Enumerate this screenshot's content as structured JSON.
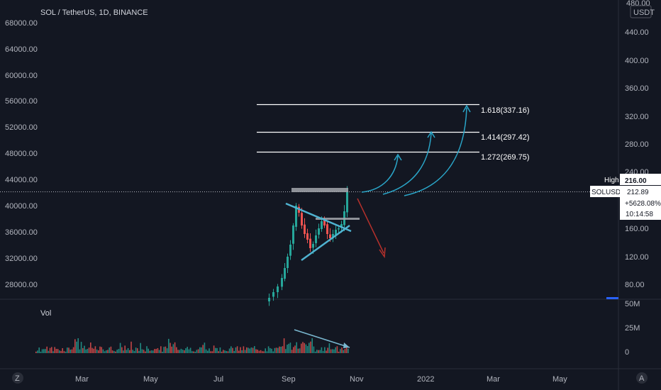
{
  "header": {
    "title": "SOL / TetherUS, 1D, BINANCE"
  },
  "axis": {
    "currency": "USDT",
    "zoom_left": "Z",
    "zoom_right": "A"
  },
  "left_ticks": [
    "68000.00",
    "64000.00",
    "60000.00",
    "56000.00",
    "52000.00",
    "48000.00",
    "44000.00",
    "40000.00",
    "36000.00",
    "32000.00",
    "28000.00"
  ],
  "right_ticks": [
    "480.00",
    "440.00",
    "400.00",
    "360.00",
    "320.00",
    "280.00",
    "240.00",
    "160.00",
    "120.00",
    "80.00"
  ],
  "volume": {
    "label": "Vol",
    "ticks": [
      "50M",
      "25M",
      "0"
    ]
  },
  "x_ticks": [
    "Mar",
    "May",
    "Jul",
    "Sep",
    "Nov",
    "2022",
    "Mar",
    "May"
  ],
  "fib_levels": [
    {
      "label": "1.618(337.16)"
    },
    {
      "label": "1.414(297.42)"
    },
    {
      "label": "1.272(269.75)"
    }
  ],
  "high_box": {
    "label": "High",
    "value": "216.00"
  },
  "price_box": {
    "symbol": "SOLUSDT",
    "price": "212.89",
    "change": "+5628.08%",
    "countdown": "10:14:58"
  },
  "colors": {
    "background": "#131722",
    "bull": "#26a69a",
    "bear": "#ef5350",
    "arrow_blue": "#2aa6c9",
    "arrow_red": "#b7312c",
    "fib_line": "#ffffff"
  },
  "chart_data": {
    "type": "candlestick",
    "title": "SOL / TetherUS, 1D, BINANCE",
    "ylim": [
      60,
      480
    ],
    "annotations": [
      "1.618(337.16)",
      "1.414(297.42)",
      "1.272(269.75)"
    ],
    "high": 216.0,
    "last_price": 212.89,
    "change_percent": 5628.08,
    "countdown": "10:14:58"
  }
}
